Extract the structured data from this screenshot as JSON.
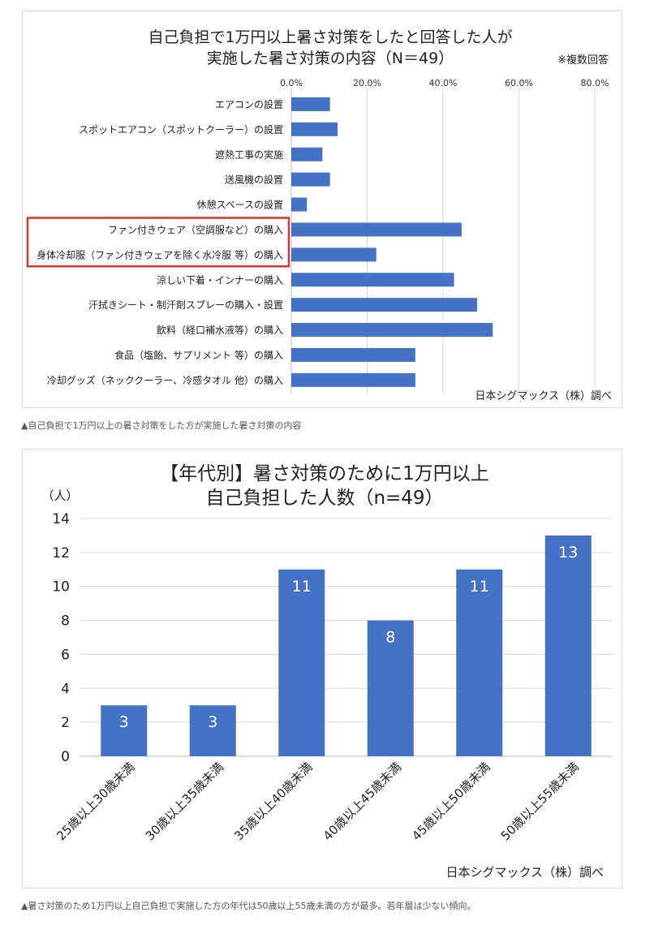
{
  "chart_data": [
    {
      "type": "bar",
      "orientation": "horizontal",
      "title_lines": [
        "自己負担で1万円以上暑さ対策をしたと回答した人が",
        "実施した暑さ対策の内容（N＝49）"
      ],
      "note": "※複数回答",
      "source": "日本シグマックス（株）調べ",
      "categories": [
        "エアコンの設置",
        "スポットエアコン（スポットクーラー）の設置",
        "遮熱工事の実施",
        "送風機の設置",
        "休憩スペースの設置",
        "ファン付きウェア（空調服など）の購入",
        "身体冷却服（ファン付きウェアを除く水冷服 等）の購入",
        "涼しい下着・インナーの購入",
        "汗拭きシート・制汗剤スプレーの購入・設置",
        "飲料（経口補水液等）の購入",
        "食品（塩飴、サプリメント 等）の購入",
        "冷却グッズ（ネッククーラー、冷感タオル 他）の購入"
      ],
      "values": [
        10.2,
        12.2,
        8.2,
        10.2,
        4.1,
        44.9,
        22.4,
        42.9,
        49.0,
        53.1,
        32.7,
        32.7
      ],
      "xlim": [
        0,
        80
      ],
      "ticks": [
        "0.0%",
        "20.0%",
        "40.0%",
        "60.0%",
        "80.0%"
      ],
      "tick_values": [
        0,
        20,
        40,
        60,
        80
      ],
      "highlighted_categories": [
        5,
        6
      ],
      "grid": true,
      "bar_color": "#4472c4",
      "highlight_color": "#e0332f"
    },
    {
      "type": "bar",
      "title_lines": [
        "【年代別】暑さ対策のために1万円以上",
        "自己負担した人数（n=49）"
      ],
      "unit_label": "（人）",
      "source": "日本シグマックス（株）調べ",
      "categories": [
        "25歳以上30歳未満",
        "30歳以上35歳未満",
        "35歳以上40歳未満",
        "40歳以上45歳未満",
        "45歳以上50歳未満",
        "50歳以上55歳未満"
      ],
      "values": [
        3,
        3,
        11,
        8,
        11,
        13
      ],
      "data_labels": [
        "3",
        "3",
        "11",
        "8",
        "11",
        "13"
      ],
      "ylim": [
        0,
        14
      ],
      "ticks": [
        "0",
        "2",
        "4",
        "6",
        "8",
        "10",
        "12",
        "14"
      ],
      "tick_values": [
        0,
        2,
        4,
        6,
        8,
        10,
        12,
        14
      ],
      "grid": true,
      "bar_color": "#4472c4"
    }
  ],
  "captions": {
    "chart1": "▲自己負担で1万円以上の暑さ対策をした方が実施した暑さ対策の内容",
    "chart2": "▲暑さ対策のため1万円以上自己負担で実施した方の年代は50歳以上55歳未満の方が最多。若年層は少ない傾向。"
  }
}
